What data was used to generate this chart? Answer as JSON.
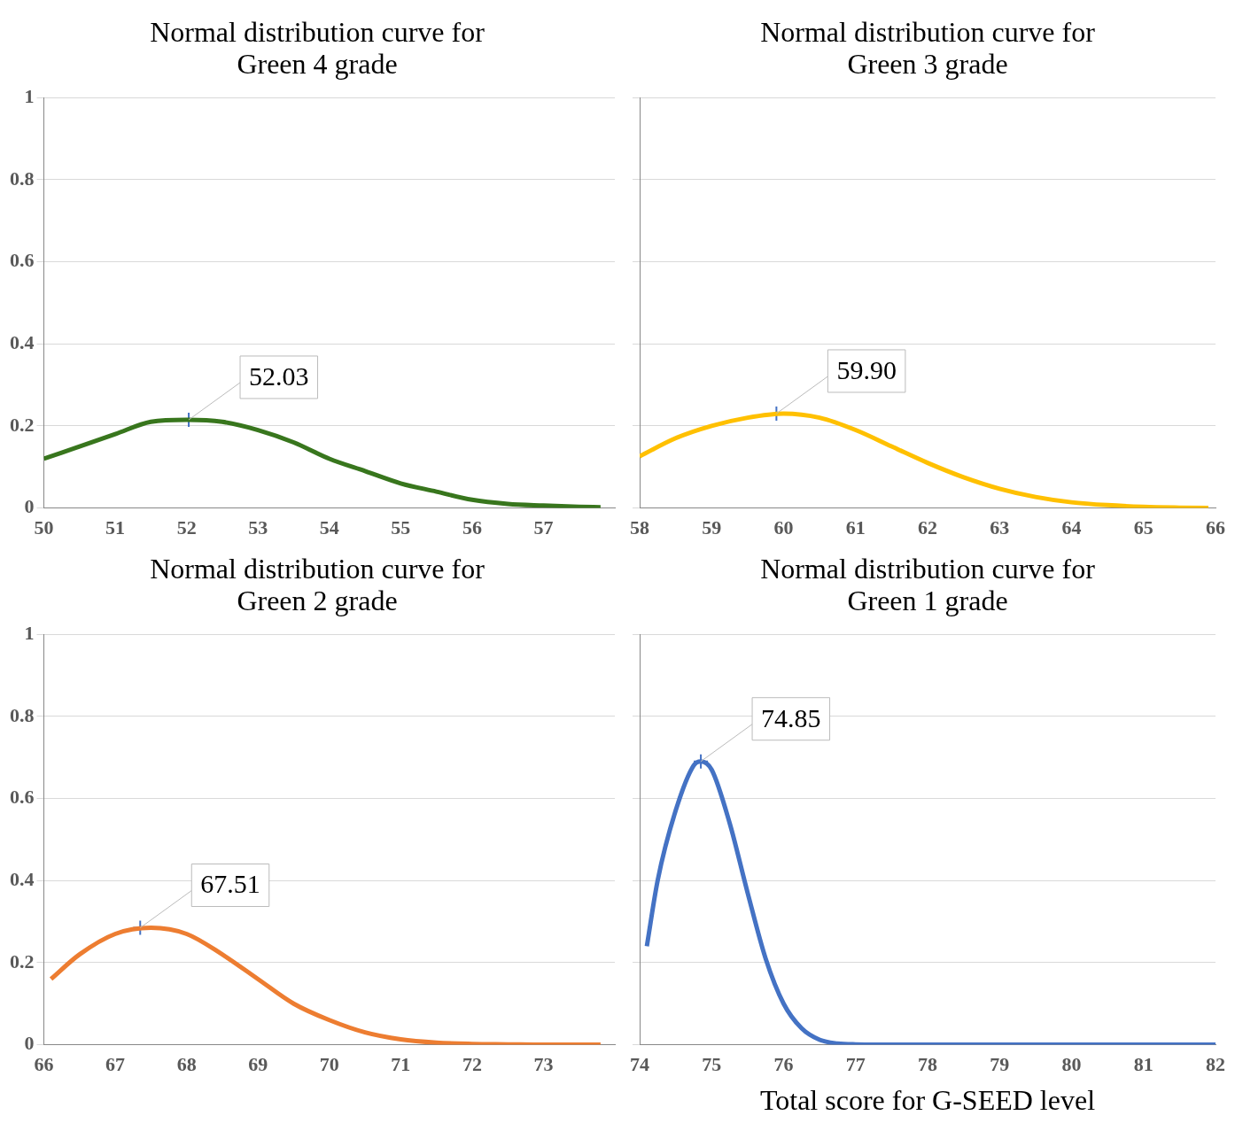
{
  "chart_data": [
    {
      "type": "line",
      "title": "Normal distribution curve for Green 4 grade",
      "x": [
        50,
        50.5,
        51,
        51.5,
        52,
        52.5,
        53,
        53.5,
        54,
        54.5,
        55,
        55.5,
        56,
        56.5,
        57,
        57.5,
        57.8
      ],
      "series": [
        {
          "color": "#38761d",
          "values": [
            0.12,
            0.15,
            0.18,
            0.21,
            0.215,
            0.21,
            0.19,
            0.16,
            0.12,
            0.09,
            0.06,
            0.04,
            0.02,
            0.01,
            0.006,
            0.003,
            0.002
          ]
        },
        {
          "type": "scatter",
          "color": "#4472c4",
          "marker": "cross",
          "x": [
            52.03
          ],
          "values": [
            0.215
          ]
        }
      ],
      "xlim": [
        50,
        58
      ],
      "xticks": [
        50,
        51,
        52,
        53,
        54,
        55,
        56,
        57
      ],
      "ylim": [
        0,
        1
      ],
      "yticks": [
        0,
        0.2,
        0.4,
        0.6,
        0.8,
        1
      ],
      "grid": "y",
      "marker": "none",
      "annotations": [
        {
          "text": "52.03",
          "x": 52.03,
          "y": 0.215
        }
      ]
    },
    {
      "type": "line",
      "title": "Normal distribution curve for Green 3 grade",
      "x": [
        58,
        58.5,
        59,
        59.5,
        60,
        60.5,
        61,
        61.5,
        62,
        62.5,
        63,
        63.5,
        64,
        64.5,
        65,
        65.5,
        65.9
      ],
      "series": [
        {
          "color": "#ffc000",
          "values": [
            0.126,
            0.17,
            0.2,
            0.22,
            0.23,
            0.22,
            0.19,
            0.15,
            0.11,
            0.075,
            0.047,
            0.027,
            0.014,
            0.007,
            0.003,
            0.001,
            0
          ]
        },
        {
          "type": "scatter",
          "color": "#4472c4",
          "marker": "cross",
          "x": [
            59.9
          ],
          "values": [
            0.23
          ]
        }
      ],
      "xlim": [
        58,
        66
      ],
      "xticks": [
        58,
        59,
        60,
        61,
        62,
        63,
        64,
        65,
        66
      ],
      "ylim": [
        0,
        1
      ],
      "yticks": [
        0,
        0.2,
        0.4,
        0.6,
        0.8,
        1
      ],
      "grid": "y",
      "marker": "none",
      "tick_labels": "x",
      "annotations": [
        {
          "text": "59.90",
          "x": 59.9,
          "y": 0.23
        }
      ]
    },
    {
      "type": "line",
      "title": "Normal distribution curve for Green 2 grade",
      "x": [
        66.1,
        66.5,
        67,
        67.5,
        68,
        68.5,
        69,
        69.5,
        70,
        70.5,
        71,
        71.5,
        72,
        72.5,
        73,
        73.8
      ],
      "series": [
        {
          "color": "#ed7d31",
          "values": [
            0.16,
            0.22,
            0.27,
            0.285,
            0.27,
            0.22,
            0.16,
            0.1,
            0.06,
            0.03,
            0.013,
            0.005,
            0.002,
            0.001,
            0,
            0
          ]
        },
        {
          "type": "scatter",
          "color": "#4472c4",
          "marker": "cross",
          "x": [
            67.35
          ],
          "values": [
            0.285
          ]
        }
      ],
      "xlim": [
        66,
        74
      ],
      "xticks": [
        66,
        67,
        68,
        69,
        70,
        71,
        72,
        73
      ],
      "ylim": [
        0,
        1
      ],
      "yticks": [
        0,
        0.2,
        0.4,
        0.6,
        0.8,
        1
      ],
      "grid": "y",
      "marker": "none",
      "annotations": [
        {
          "text": "67.51",
          "x": 67.35,
          "y": 0.285
        }
      ]
    },
    {
      "type": "line",
      "title": "Normal distribution curve for Green 1 grade",
      "xlabel": "Total score for G-SEED  level",
      "x": [
        74.1,
        74.25,
        74.5,
        74.75,
        74.85,
        75,
        75.25,
        75.5,
        75.75,
        76,
        76.25,
        76.5,
        76.75,
        77,
        78,
        80,
        82
      ],
      "series": [
        {
          "color": "#4472c4",
          "values": [
            0.24,
            0.4,
            0.57,
            0.68,
            0.69,
            0.67,
            0.54,
            0.37,
            0.21,
            0.1,
            0.04,
            0.012,
            0.003,
            0.001,
            0,
            0,
            0
          ]
        },
        {
          "type": "scatter",
          "color": "#4472c4",
          "marker": "cross",
          "x": [
            74.85
          ],
          "values": [
            0.69
          ]
        }
      ],
      "xlim": [
        74,
        82
      ],
      "xticks": [
        74,
        75,
        76,
        77,
        78,
        79,
        80,
        81,
        82
      ],
      "ylim": [
        0,
        1
      ],
      "yticks": [
        0,
        0.2,
        0.4,
        0.6,
        0.8,
        1
      ],
      "grid": "y",
      "marker": "none",
      "tick_labels": "x",
      "annotations": [
        {
          "text": "74.85",
          "x": 74.85,
          "y": 0.69
        }
      ]
    }
  ]
}
